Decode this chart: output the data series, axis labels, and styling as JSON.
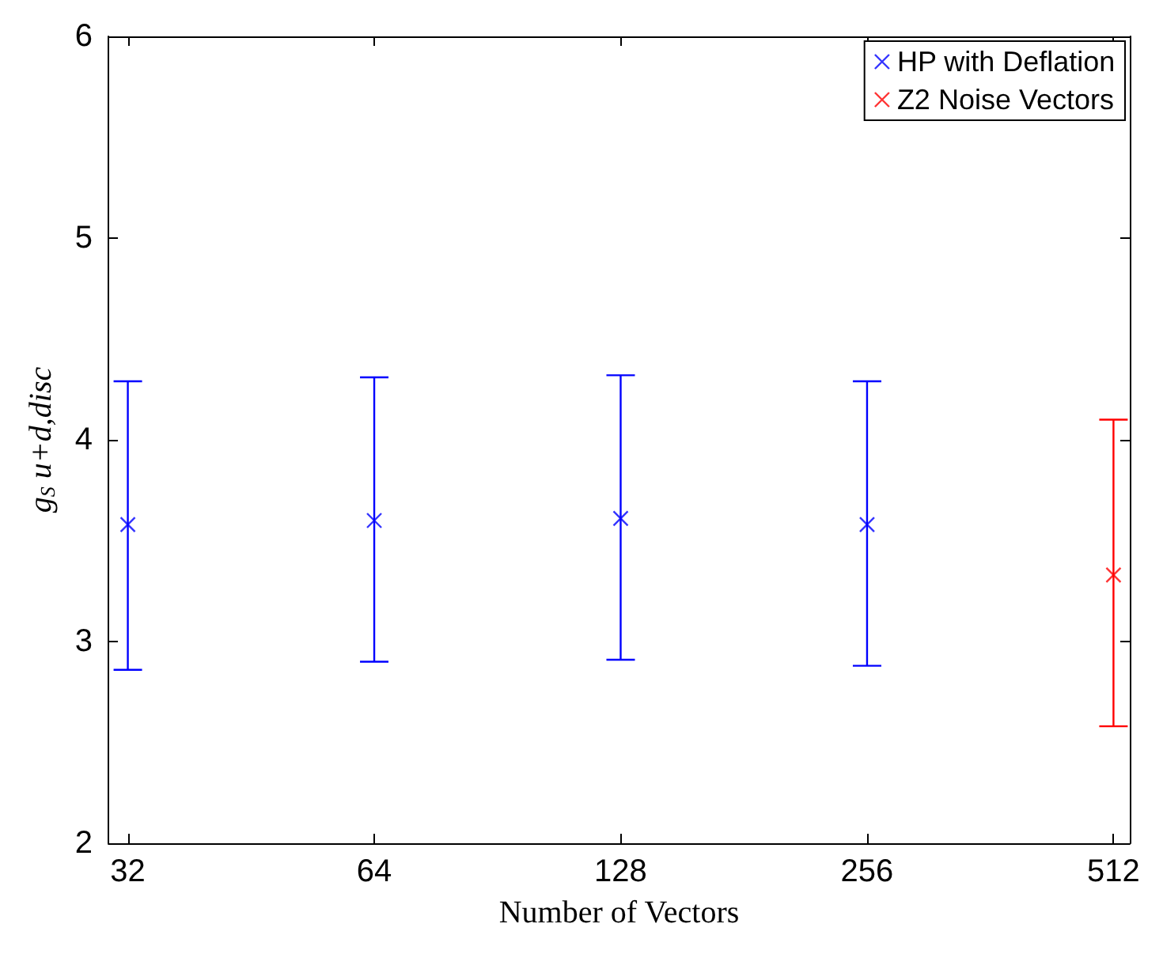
{
  "chart_data": {
    "type": "scatter",
    "xlabel": "Number of Vectors",
    "ylabel": "g$_{S}$ u+d,disc",
    "log": "x",
    "xlim": [
      30.3,
      536
    ],
    "xticks": [
      32,
      64,
      128,
      256,
      512
    ],
    "ylim": [
      2,
      6
    ],
    "yticks": [
      2,
      3,
      4,
      5,
      6
    ],
    "series": [
      {
        "name": "HP with Deflation",
        "color": "#0000ff",
        "x": [
          32,
          64,
          128,
          256
        ],
        "values": [
          3.58,
          3.6,
          3.61,
          3.58
        ],
        "errors": [
          [
            2.86,
            4.29
          ],
          [
            2.9,
            4.31
          ],
          [
            2.91,
            4.32
          ],
          [
            2.88,
            4.29
          ]
        ]
      },
      {
        "name": "Z2 Noise Vectors",
        "color": "#ff0000",
        "x": [
          512
        ],
        "values": [
          3.33
        ],
        "errors": [
          [
            2.58,
            4.1
          ]
        ]
      }
    ],
    "marker": "cross",
    "legend": "top right",
    "grid": false
  }
}
